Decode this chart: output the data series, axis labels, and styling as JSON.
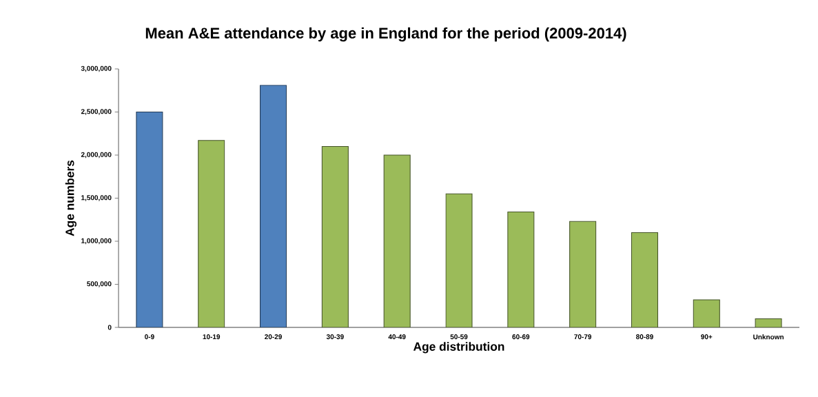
{
  "chart_data": {
    "type": "bar",
    "title": "Mean A&E attendance by age in England for the period  (2009-2014)",
    "xlabel": "Age distribution",
    "ylabel": "Age numbers",
    "categories": [
      "0-9",
      "10-19",
      "20-29",
      "30-39",
      "40-49",
      "50-59",
      "60-69",
      "70-79",
      "80-89",
      "90+",
      "Unknown"
    ],
    "values": [
      2500000,
      2170000,
      2810000,
      2100000,
      2000000,
      1550000,
      1340000,
      1230000,
      1100000,
      320000,
      100000
    ],
    "colors": [
      "#4f81bd",
      "#9bbb59",
      "#4f81bd",
      "#9bbb59",
      "#9bbb59",
      "#9bbb59",
      "#9bbb59",
      "#9bbb59",
      "#9bbb59",
      "#9bbb59",
      "#9bbb59"
    ],
    "ylim": [
      0,
      3000000
    ],
    "yticks": [
      0,
      {
        "value": 500000,
        "label": "500,000"
      },
      {
        "value": 1000000,
        "label": "1,000,000"
      },
      {
        "value": 1500000,
        "label": "1,500,000"
      },
      {
        "value": 2000000,
        "label": "2,000,000"
      },
      {
        "value": 2500000,
        "label": "2,500,000"
      },
      {
        "value": 3000000,
        "label": "3,000,000"
      }
    ],
    "grid": false
  }
}
